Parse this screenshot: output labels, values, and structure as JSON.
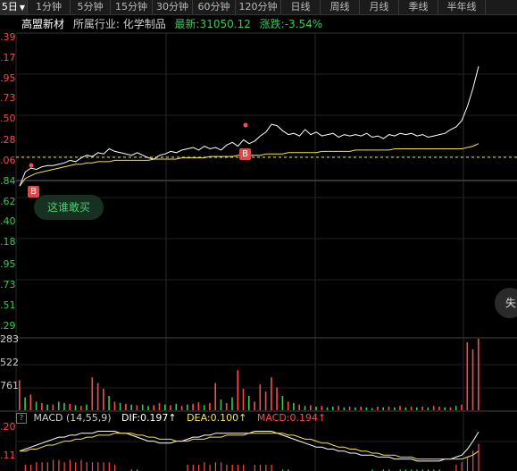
{
  "tabs": [
    {
      "label": "5日",
      "active": true
    },
    {
      "label": "1分钟"
    },
    {
      "label": "5分钟"
    },
    {
      "label": "15分钟"
    },
    {
      "label": "30分钟"
    },
    {
      "label": "60分钟"
    },
    {
      "label": "120分钟"
    },
    {
      "label": "日线"
    },
    {
      "label": "周线"
    },
    {
      "label": "月线"
    },
    {
      "label": "季线"
    },
    {
      "label": "半年线"
    }
  ],
  "info": {
    "name": "高盟新材",
    "industry": "所属行业: 化学制品",
    "latest": "最新:31050.12",
    "change": "涨跌:-3.54%"
  },
  "price_axis": [
    ".39",
    ".17",
    ".95",
    ".73",
    ".50",
    ".28",
    ".06",
    ".84",
    ".62",
    ".40",
    ".18",
    ".95",
    ".73",
    ".51",
    ".29"
  ],
  "volume_axis": [
    "283",
    "522",
    "761"
  ],
  "macd_axis": [
    ".20",
    ".11"
  ],
  "markers": {
    "buy": "B"
  },
  "who_buy_label": "这谁敢买",
  "side_button_label": "失",
  "macd": {
    "title": "MACD (14,55,9)",
    "help": "?",
    "dif": "DIF:0.197↑",
    "dea": "DEA:0.100↑",
    "macd": "MACD:0.194↑"
  },
  "colors": {
    "up": "#ff4a4a",
    "down": "#33cc55",
    "price_line": "#ffffff",
    "avg_line": "#f5e44a",
    "ref_line": "#d8d86a"
  },
  "chart_data": {
    "type": "line",
    "series": [
      {
        "values": [
          12.4,
          13.5,
          13.8,
          13.7,
          13.9,
          14.0,
          14.0,
          14.1,
          14.2,
          14.4,
          14.3,
          14.6,
          14.8,
          14.7,
          15.0,
          14.9,
          15.3,
          15.1,
          15.0,
          14.9,
          14.8,
          15.0,
          14.8,
          14.6,
          14.5,
          14.8,
          14.9,
          15.1,
          15.0,
          15.2,
          15.3,
          15.4,
          15.2,
          15.5,
          15.3,
          15.4,
          15.2,
          15.6,
          15.8,
          15.5,
          16.0,
          15.7,
          15.9,
          16.3,
          16.6,
          17.2,
          17.1,
          16.7,
          16.4,
          16.5,
          16.3,
          16.8,
          16.4,
          16.6,
          16.3,
          16.4,
          16.5,
          16.2,
          16.4,
          16.3,
          16.4,
          16.3,
          16.5,
          16.2,
          16.3,
          16.1,
          16.4,
          16.3,
          16.5,
          16.4,
          16.5,
          16.3,
          16.4,
          16.2,
          16.3,
          16.4,
          16.5,
          16.8,
          17.0,
          17.5,
          18.6,
          20.0,
          21.7
        ]
      },
      {
        "values": [
          12.4,
          13.0,
          13.2,
          13.4,
          13.5,
          13.6,
          13.7,
          13.8,
          13.9,
          14.0,
          14.1,
          14.1,
          14.2,
          14.2,
          14.3,
          14.3,
          14.3,
          14.4,
          14.4,
          14.4,
          14.4,
          14.4,
          14.4,
          14.4,
          14.5,
          14.5,
          14.5,
          14.5,
          14.5,
          14.6,
          14.6,
          14.6,
          14.6,
          14.6,
          14.7,
          14.7,
          14.7,
          14.7,
          14.7,
          14.8,
          14.8,
          14.8,
          14.8,
          14.8,
          14.9,
          14.9,
          14.9,
          14.9,
          15.0,
          15.0,
          15.0,
          15.0,
          15.0,
          15.0,
          15.1,
          15.1,
          15.1,
          15.1,
          15.1,
          15.1,
          15.2,
          15.2,
          15.2,
          15.2,
          15.2,
          15.2,
          15.2,
          15.3,
          15.3,
          15.3,
          15.3,
          15.3,
          15.3,
          15.3,
          15.3,
          15.3,
          15.3,
          15.3,
          15.3,
          15.3,
          15.4,
          15.5,
          15.7
        ]
      }
    ],
    "volume": [
      0.42,
      0.18,
      0.22,
      0.12,
      0.1,
      0.08,
      0.08,
      0.12,
      0.1,
      0.09,
      0.07,
      0.06,
      0.08,
      0.46,
      0.38,
      0.3,
      0.2,
      0.12,
      0.1,
      0.09,
      0.08,
      0.07,
      0.08,
      0.06,
      0.07,
      0.1,
      0.08,
      0.07,
      0.09,
      0.06,
      0.08,
      0.09,
      0.11,
      0.07,
      0.1,
      0.38,
      0.15,
      0.1,
      0.18,
      0.56,
      0.3,
      0.2,
      0.12,
      0.36,
      0.26,
      0.46,
      0.32,
      0.2,
      0.12,
      0.1,
      0.08,
      0.06,
      0.07,
      0.05,
      0.06,
      0.04,
      0.05,
      0.06,
      0.04,
      0.05,
      0.04,
      0.05,
      0.04,
      0.03,
      0.05,
      0.04,
      0.05,
      0.04,
      0.06,
      0.04,
      0.05,
      0.04,
      0.05,
      0.04,
      0.06,
      0.05,
      0.04,
      0.04,
      0.06,
      0.08,
      0.95,
      0.85,
      1.0
    ],
    "volume_up": [
      true,
      false,
      true,
      false,
      true,
      false,
      true,
      false,
      false,
      true,
      false,
      true,
      false,
      true,
      true,
      true,
      false,
      true,
      false,
      true,
      false,
      true,
      false,
      false,
      true,
      true,
      false,
      true,
      false,
      true,
      false,
      true,
      true,
      false,
      true,
      true,
      false,
      true,
      false,
      true,
      true,
      false,
      true,
      true,
      true,
      true,
      true,
      false,
      true,
      false,
      true,
      false,
      true,
      false,
      true,
      false,
      false,
      true,
      false,
      true,
      false,
      true,
      false,
      false,
      true,
      false,
      true,
      false,
      true,
      false,
      true,
      false,
      true,
      false,
      true,
      true,
      false,
      true,
      false,
      true,
      true,
      true,
      true
    ],
    "dif": [
      0.1,
      0.11,
      0.12,
      0.13,
      0.14,
      0.15,
      0.16,
      0.17,
      0.17,
      0.18,
      0.18,
      0.19,
      0.19,
      0.19,
      0.2,
      0.2,
      0.2,
      0.2,
      0.19,
      0.19,
      0.18,
      0.17,
      0.16,
      0.15,
      0.15,
      0.14,
      0.14,
      0.14,
      0.15,
      0.15,
      0.16,
      0.17,
      0.17,
      0.18,
      0.18,
      0.19,
      0.19,
      0.19,
      0.19,
      0.19,
      0.19,
      0.19,
      0.2,
      0.2,
      0.2,
      0.2,
      0.19,
      0.18,
      0.17,
      0.16,
      0.15,
      0.14,
      0.13,
      0.12,
      0.12,
      0.11,
      0.11,
      0.1,
      0.1,
      0.09,
      0.09,
      0.08,
      0.08,
      0.08,
      0.07,
      0.07,
      0.07,
      0.06,
      0.06,
      0.06,
      0.06,
      0.05,
      0.05,
      0.05,
      0.05,
      0.05,
      0.06,
      0.06,
      0.07,
      0.08,
      0.11,
      0.15,
      0.197
    ],
    "dea": [
      0.1,
      0.1,
      0.11,
      0.11,
      0.12,
      0.13,
      0.13,
      0.14,
      0.15,
      0.15,
      0.16,
      0.16,
      0.17,
      0.17,
      0.18,
      0.18,
      0.18,
      0.19,
      0.19,
      0.19,
      0.19,
      0.18,
      0.18,
      0.17,
      0.17,
      0.16,
      0.16,
      0.16,
      0.15,
      0.15,
      0.15,
      0.16,
      0.16,
      0.16,
      0.17,
      0.17,
      0.17,
      0.18,
      0.18,
      0.18,
      0.18,
      0.19,
      0.19,
      0.19,
      0.19,
      0.19,
      0.19,
      0.19,
      0.18,
      0.18,
      0.17,
      0.16,
      0.16,
      0.15,
      0.14,
      0.14,
      0.13,
      0.12,
      0.12,
      0.11,
      0.11,
      0.1,
      0.1,
      0.09,
      0.09,
      0.08,
      0.08,
      0.08,
      0.07,
      0.07,
      0.07,
      0.06,
      0.06,
      0.06,
      0.06,
      0.06,
      0.06,
      0.06,
      0.06,
      0.06,
      0.07,
      0.08,
      0.1
    ]
  }
}
